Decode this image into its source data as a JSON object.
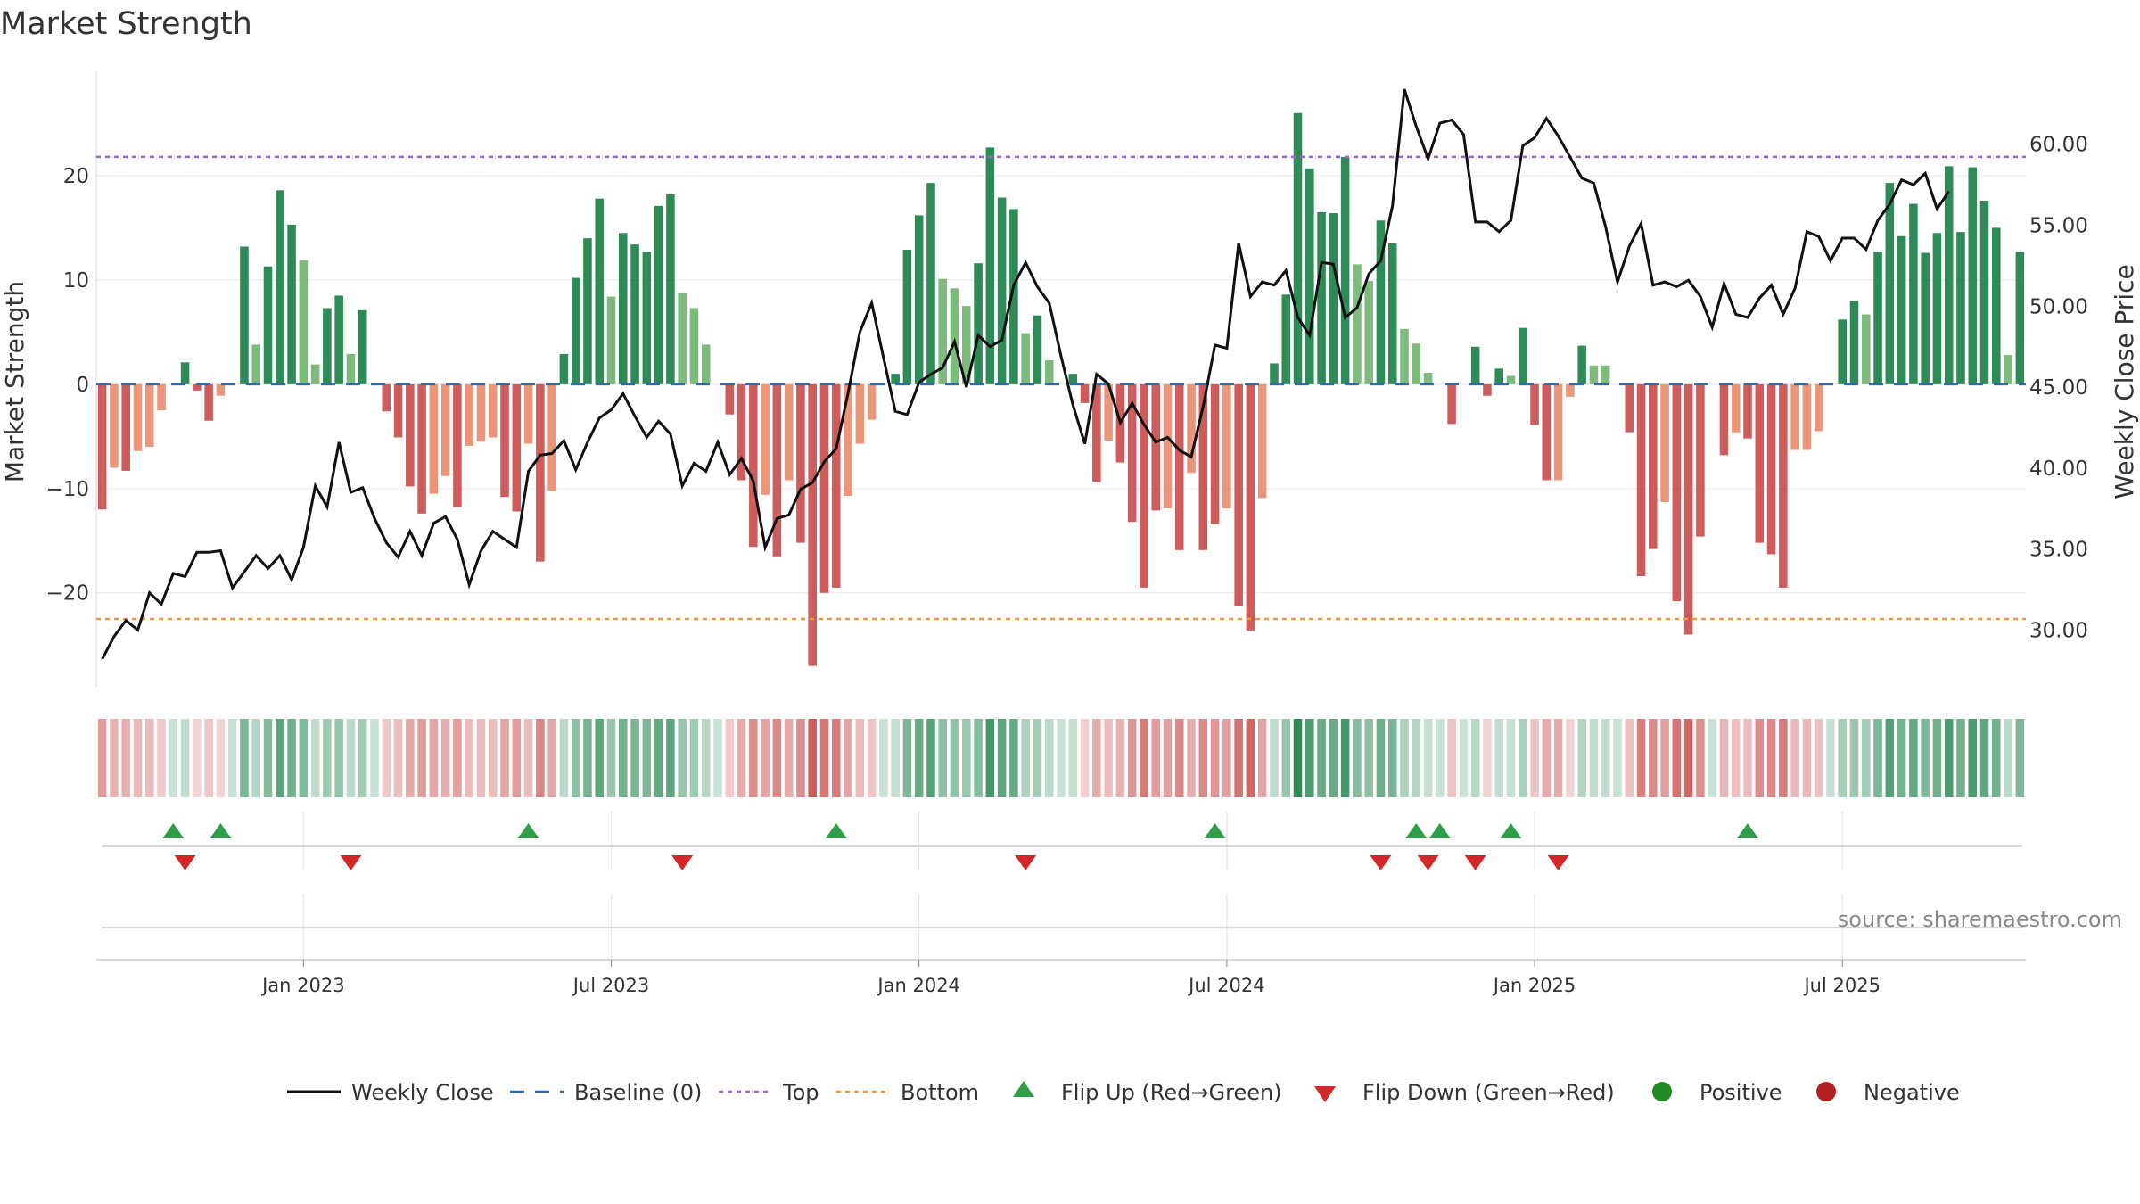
{
  "chart_data": {
    "type": "bar+line",
    "title": "Market Strength",
    "ylabel": "Market Strength",
    "y2label": "Weekly Close Price",
    "source": "source: sharemaestro.com",
    "ylim": [
      -29,
      30
    ],
    "y2lim": [
      26.5,
      64.5
    ],
    "yticks": [
      20,
      10,
      0,
      -10,
      -20
    ],
    "ytick_labels": [
      "20",
      "10",
      "0",
      "−10",
      "−20"
    ],
    "y2ticks": [
      60,
      55,
      50,
      45,
      40,
      35,
      30
    ],
    "y2tick_labels": [
      "60.00",
      "55.00",
      "50.00",
      "45.00",
      "40.00",
      "35.00",
      "30.00"
    ],
    "top_level": 21.8,
    "bottom_level": -22.5,
    "baseline": 0,
    "date_ticks": [
      {
        "label": "Jan 2023",
        "week": 17
      },
      {
        "label": "Jul 2023",
        "week": 43
      },
      {
        "label": "Jan 2024",
        "week": 69
      },
      {
        "label": "Jul 2024",
        "week": 95
      },
      {
        "label": "Jan 2025",
        "week": 121
      },
      {
        "label": "Jul 2025",
        "week": 147
      }
    ],
    "strength": [
      -12,
      -8,
      -8.3,
      -6.4,
      -6,
      -2.5,
      0.3,
      2.1,
      -0.6,
      -3.5,
      -1.1,
      0.2,
      13.2,
      3.8,
      11.3,
      18.6,
      15.3,
      11.9,
      1.9,
      7.3,
      8.5,
      2.9,
      7.1,
      0.2,
      -2.6,
      -5.1,
      -9.8,
      -12.4,
      -10.5,
      -8.8,
      -11.8,
      -5.9,
      -5.5,
      -5.1,
      -10.8,
      -12.2,
      -5.7,
      -17,
      -10.2,
      2.9,
      10.2,
      14,
      17.8,
      8.4,
      14.5,
      13.4,
      12.7,
      17.1,
      18.2,
      8.8,
      7.3,
      3.8,
      0.3,
      -2.9,
      -9.2,
      -15.6,
      -10.6,
      -16.5,
      -9.2,
      -15.2,
      -27,
      -20,
      -19.5,
      -10.7,
      -5.7,
      -3.4,
      0.2,
      1,
      12.9,
      16.2,
      19.3,
      10.1,
      9.2,
      7.5,
      11.6,
      22.7,
      17.9,
      16.8,
      4.9,
      6.6,
      2.3,
      0.3,
      1,
      -1.8,
      -9.4,
      -5.4,
      -7.5,
      -13.2,
      -19.5,
      -12.1,
      -11.9,
      -15.9,
      -8.5,
      -15.9,
      -13.4,
      -11.9,
      -21.3,
      -23.6,
      -10.9,
      2,
      8.6,
      26,
      20.7,
      16.5,
      16.4,
      21.8,
      11.5,
      9.9,
      15.7,
      13.5,
      5.3,
      3.9,
      1.1,
      0.2,
      -3.8,
      0.2,
      3.6,
      -1.1,
      1.5,
      0.8,
      5.4,
      -3.9,
      -9.2,
      -9.2,
      -1.2,
      3.7,
      1.8,
      1.8,
      0.2,
      -4.6,
      -18.4,
      -15.8,
      -11.3,
      -20.8,
      -24,
      -14.6,
      0.2,
      -6.8,
      -4.6,
      -5.2,
      -15.2,
      -16.3,
      -19.5,
      -6.3,
      -6.3,
      -4.5,
      0.2,
      6.2,
      8,
      6.7,
      12.7,
      19.3,
      14.2,
      17.3,
      12.6,
      14.5,
      20.9,
      14.6,
      20.8,
      17.6,
      15,
      2.8,
      12.7
    ],
    "close": [
      28.2,
      29.6,
      30.6,
      30,
      32.3,
      31.6,
      33.5,
      33.3,
      34.8,
      34.8,
      34.9,
      32.6,
      33.6,
      34.6,
      33.8,
      34.6,
      33.1,
      35.1,
      38.9,
      37.6,
      41.6,
      38.5,
      38.8,
      36.9,
      35.4,
      34.5,
      36.1,
      34.6,
      36.6,
      37,
      35.6,
      32.8,
      34.9,
      36.1,
      35.6,
      35.1,
      39.8,
      40.8,
      40.9,
      41.7,
      39.9,
      41.6,
      43.1,
      43.6,
      44.6,
      43.2,
      41.9,
      42.9,
      42.1,
      38.9,
      40.3,
      39.8,
      41.6,
      39.6,
      40.6,
      39.2,
      35.1,
      36.9,
      37.1,
      38.7,
      39.1,
      40.4,
      41.2,
      44.6,
      48.4,
      50.2,
      46.8,
      43.5,
      43.3,
      45.3,
      45.8,
      46.2,
      47.8,
      45,
      48.2,
      47.5,
      47.9,
      51.3,
      52.7,
      51.2,
      50.2,
      46.9,
      43.9,
      41.5,
      45.8,
      45.2,
      42.8,
      44,
      42.7,
      41.6,
      41.9,
      41.1,
      40.7,
      43.8,
      47.6,
      47.4,
      53.9,
      50.6,
      51.5,
      51.3,
      52.2,
      49.3,
      48.2,
      52.7,
      52.6,
      49.3,
      49.9,
      52,
      52.8,
      56.2,
      63.4,
      61.1,
      59.1,
      61.3,
      61.5,
      60.6,
      55.2,
      55.2,
      54.6,
      55.3,
      59.9,
      60.4,
      61.6,
      60.5,
      59.2,
      57.9,
      57.6,
      54.9,
      51.5,
      53.7,
      55.1,
      51.3,
      51.5,
      51.2,
      51.6,
      50.6,
      48.7,
      51.4,
      49.5,
      49.3,
      50.5,
      51.3,
      49.5,
      51.1,
      54.6,
      54.3,
      52.8,
      54.2,
      54.2,
      53.5,
      55.3,
      56.3,
      57.8,
      57.5,
      58.2,
      56,
      57.1
    ],
    "flip_up_weeks": [
      6,
      10,
      36,
      62,
      94,
      111,
      113,
      119,
      139
    ],
    "flip_down_weeks": [
      7,
      21,
      49,
      78,
      108,
      112,
      116,
      123
    ],
    "legend": [
      "Weekly Close",
      "Baseline (0)",
      "Top",
      "Bottom",
      "Flip Up (Red→Green)",
      "Flip Down (Green→Red)",
      "Positive",
      "Negative"
    ],
    "colors": {
      "line": "#111111",
      "baseline": "#2b6cb0",
      "top": "#9966cc",
      "bottom": "#e89a4c",
      "flip_up": "#2e9e48",
      "flip_down": "#d62728",
      "positive": "#228b22",
      "negative": "#b22222",
      "pos_strong": "#2e8b57",
      "pos_light": "#7cbb7c",
      "neg_strong": "#cd5c5c",
      "neg_light": "#e9967a"
    }
  }
}
